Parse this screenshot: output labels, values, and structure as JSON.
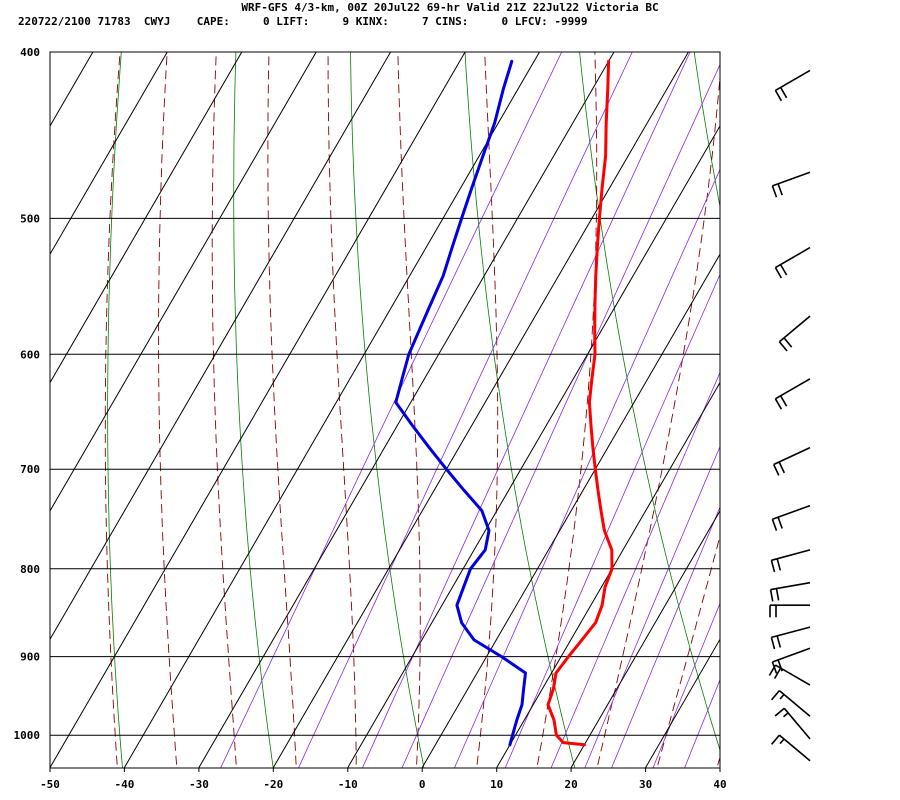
{
  "header": {
    "line1": "WRF-GFS 4/3-km, 00Z 20Jul22 69-hr Valid 21Z 22Jul22 Victoria BC",
    "line2": "220722/2100 71783  CWYJ    CAPE:     0 LIFT:     9 KINX:     7 CINS:     0 LFCV: -9999"
  },
  "chart_data": {
    "type": "line",
    "title": "WRF-GFS 4/3-km, 00Z 20Jul22 69-hr Valid 21Z 22Jul22 Victoria BC",
    "subtitle": "220722/2100 71783  CWYJ    CAPE:     0 LIFT:     9 KINX:     7 CINS:     0 LFCV: -9999",
    "xlabel": "",
    "ylabel": "",
    "x_ticks": [
      "-50",
      "-40",
      "-30",
      "-20",
      "-10",
      "0",
      "10",
      "20",
      "30",
      "40"
    ],
    "y_ticks": [
      "400",
      "500",
      "600",
      "700",
      "800",
      "900",
      "1000"
    ],
    "xlim": [
      -50,
      40
    ],
    "pressure_range": [
      400,
      1045
    ],
    "skew": true,
    "grid": true,
    "series": [
      {
        "color": "#ff0000",
        "points": [
          [
            20,
            1013
          ],
          [
            17,
            1010
          ],
          [
            15.5,
            1000
          ],
          [
            14,
            980
          ],
          [
            12,
            960
          ],
          [
            11.5,
            940
          ],
          [
            10.6,
            920
          ],
          [
            11,
            900
          ],
          [
            11.5,
            880
          ],
          [
            12,
            860
          ],
          [
            11.5,
            840
          ],
          [
            10.5,
            820
          ],
          [
            10,
            800
          ],
          [
            8.5,
            780
          ],
          [
            6,
            760
          ],
          [
            4,
            740
          ],
          [
            2,
            720
          ],
          [
            0,
            700
          ],
          [
            -2,
            680
          ],
          [
            -4,
            660
          ],
          [
            -6,
            640
          ],
          [
            -7.5,
            620
          ],
          [
            -9,
            600
          ],
          [
            -11,
            580
          ],
          [
            -13,
            560
          ],
          [
            -15,
            540
          ],
          [
            -17,
            520
          ],
          [
            -19,
            500
          ],
          [
            -21,
            480
          ],
          [
            -23,
            460
          ],
          [
            -25.5,
            440
          ],
          [
            -28,
            420
          ],
          [
            -30,
            405
          ]
        ]
      },
      {
        "color": "#0000e0",
        "points": [
          [
            10,
            1013
          ],
          [
            9.6,
            1000
          ],
          [
            9,
            980
          ],
          [
            8.5,
            960
          ],
          [
            7.5,
            940
          ],
          [
            6.5,
            920
          ],
          [
            2,
            900
          ],
          [
            -3,
            880
          ],
          [
            -6,
            860
          ],
          [
            -8,
            840
          ],
          [
            -8.5,
            820
          ],
          [
            -9,
            800
          ],
          [
            -8.5,
            780
          ],
          [
            -9.5,
            760
          ],
          [
            -12,
            740
          ],
          [
            -16,
            720
          ],
          [
            -20,
            700
          ],
          [
            -24,
            680
          ],
          [
            -28,
            660
          ],
          [
            -32,
            640
          ],
          [
            -33,
            620
          ],
          [
            -34,
            600
          ],
          [
            -34.5,
            580
          ],
          [
            -35,
            560
          ],
          [
            -35.5,
            540
          ],
          [
            -36.5,
            520
          ],
          [
            -37.5,
            500
          ],
          [
            -38.5,
            480
          ],
          [
            -39.5,
            460
          ],
          [
            -40.5,
            440
          ],
          [
            -42,
            420
          ],
          [
            -43,
            405
          ]
        ]
      }
    ],
    "wind_barbs": [
      {
        "p": 410,
        "dir": 240,
        "speed": 20
      },
      {
        "p": 470,
        "dir": 250,
        "speed": 20
      },
      {
        "p": 520,
        "dir": 240,
        "speed": 20
      },
      {
        "p": 570,
        "dir": 230,
        "speed": 20
      },
      {
        "p": 620,
        "dir": 240,
        "speed": 20
      },
      {
        "p": 680,
        "dir": 245,
        "speed": 20
      },
      {
        "p": 735,
        "dir": 250,
        "speed": 20
      },
      {
        "p": 780,
        "dir": 255,
        "speed": 20
      },
      {
        "p": 815,
        "dir": 260,
        "speed": 20
      },
      {
        "p": 840,
        "dir": 270,
        "speed": 20
      },
      {
        "p": 865,
        "dir": 255,
        "speed": 20
      },
      {
        "p": 890,
        "dir": 250,
        "speed": 20
      },
      {
        "p": 935,
        "dir": 300,
        "speed": 20
      },
      {
        "p": 975,
        "dir": 310,
        "speed": 15
      },
      {
        "p": 1005,
        "dir": 320,
        "speed": 15
      },
      {
        "p": 1035,
        "dir": 310,
        "speed": 15
      }
    ],
    "colors": {
      "temperature": "#ff0000",
      "dewpoint": "#0000e0",
      "dry_adiabat": "#008000",
      "moist_adiabat": "#8b0000",
      "mixing_ratio": "#8a2be2",
      "wind_barb": "#000000"
    }
  }
}
